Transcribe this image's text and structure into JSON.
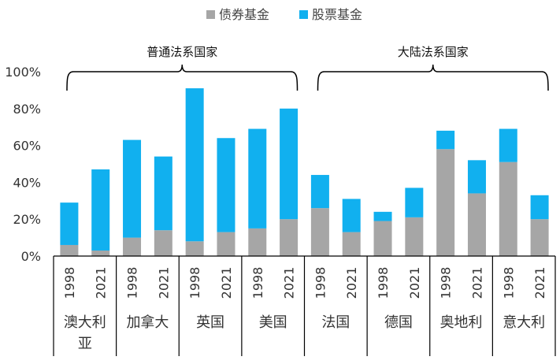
{
  "chart_data": {
    "type": "bar",
    "stacked": true,
    "legend_position": "top-center",
    "legend": [
      "债券基金",
      "股票基金"
    ],
    "colors": {
      "bond": "#a6a6a6",
      "equity": "#11b0ef"
    },
    "ylim": [
      0,
      100
    ],
    "yticks": [
      "0%",
      "20%",
      "40%",
      "60%",
      "80%",
      "100%"
    ],
    "countries": [
      "澳大利亚",
      "加拿大",
      "英国",
      "美国",
      "法国",
      "德国",
      "奥地利",
      "意大利"
    ],
    "years": [
      "1998",
      "2021"
    ],
    "groups": [
      {
        "label": "普通法系国家",
        "first": 0,
        "last": 3
      },
      {
        "label": "大陆法系国家",
        "first": 4,
        "last": 7
      }
    ],
    "series": [
      {
        "name": "债券基金",
        "values": [
          6,
          3,
          10,
          14,
          8,
          13,
          15,
          20,
          26,
          13,
          19,
          21,
          58,
          34,
          51,
          20
        ]
      },
      {
        "name": "股票基金",
        "values": [
          23,
          44,
          53,
          40,
          83,
          51,
          54,
          60,
          18,
          18,
          5,
          16,
          10,
          18,
          18,
          13
        ]
      }
    ]
  }
}
